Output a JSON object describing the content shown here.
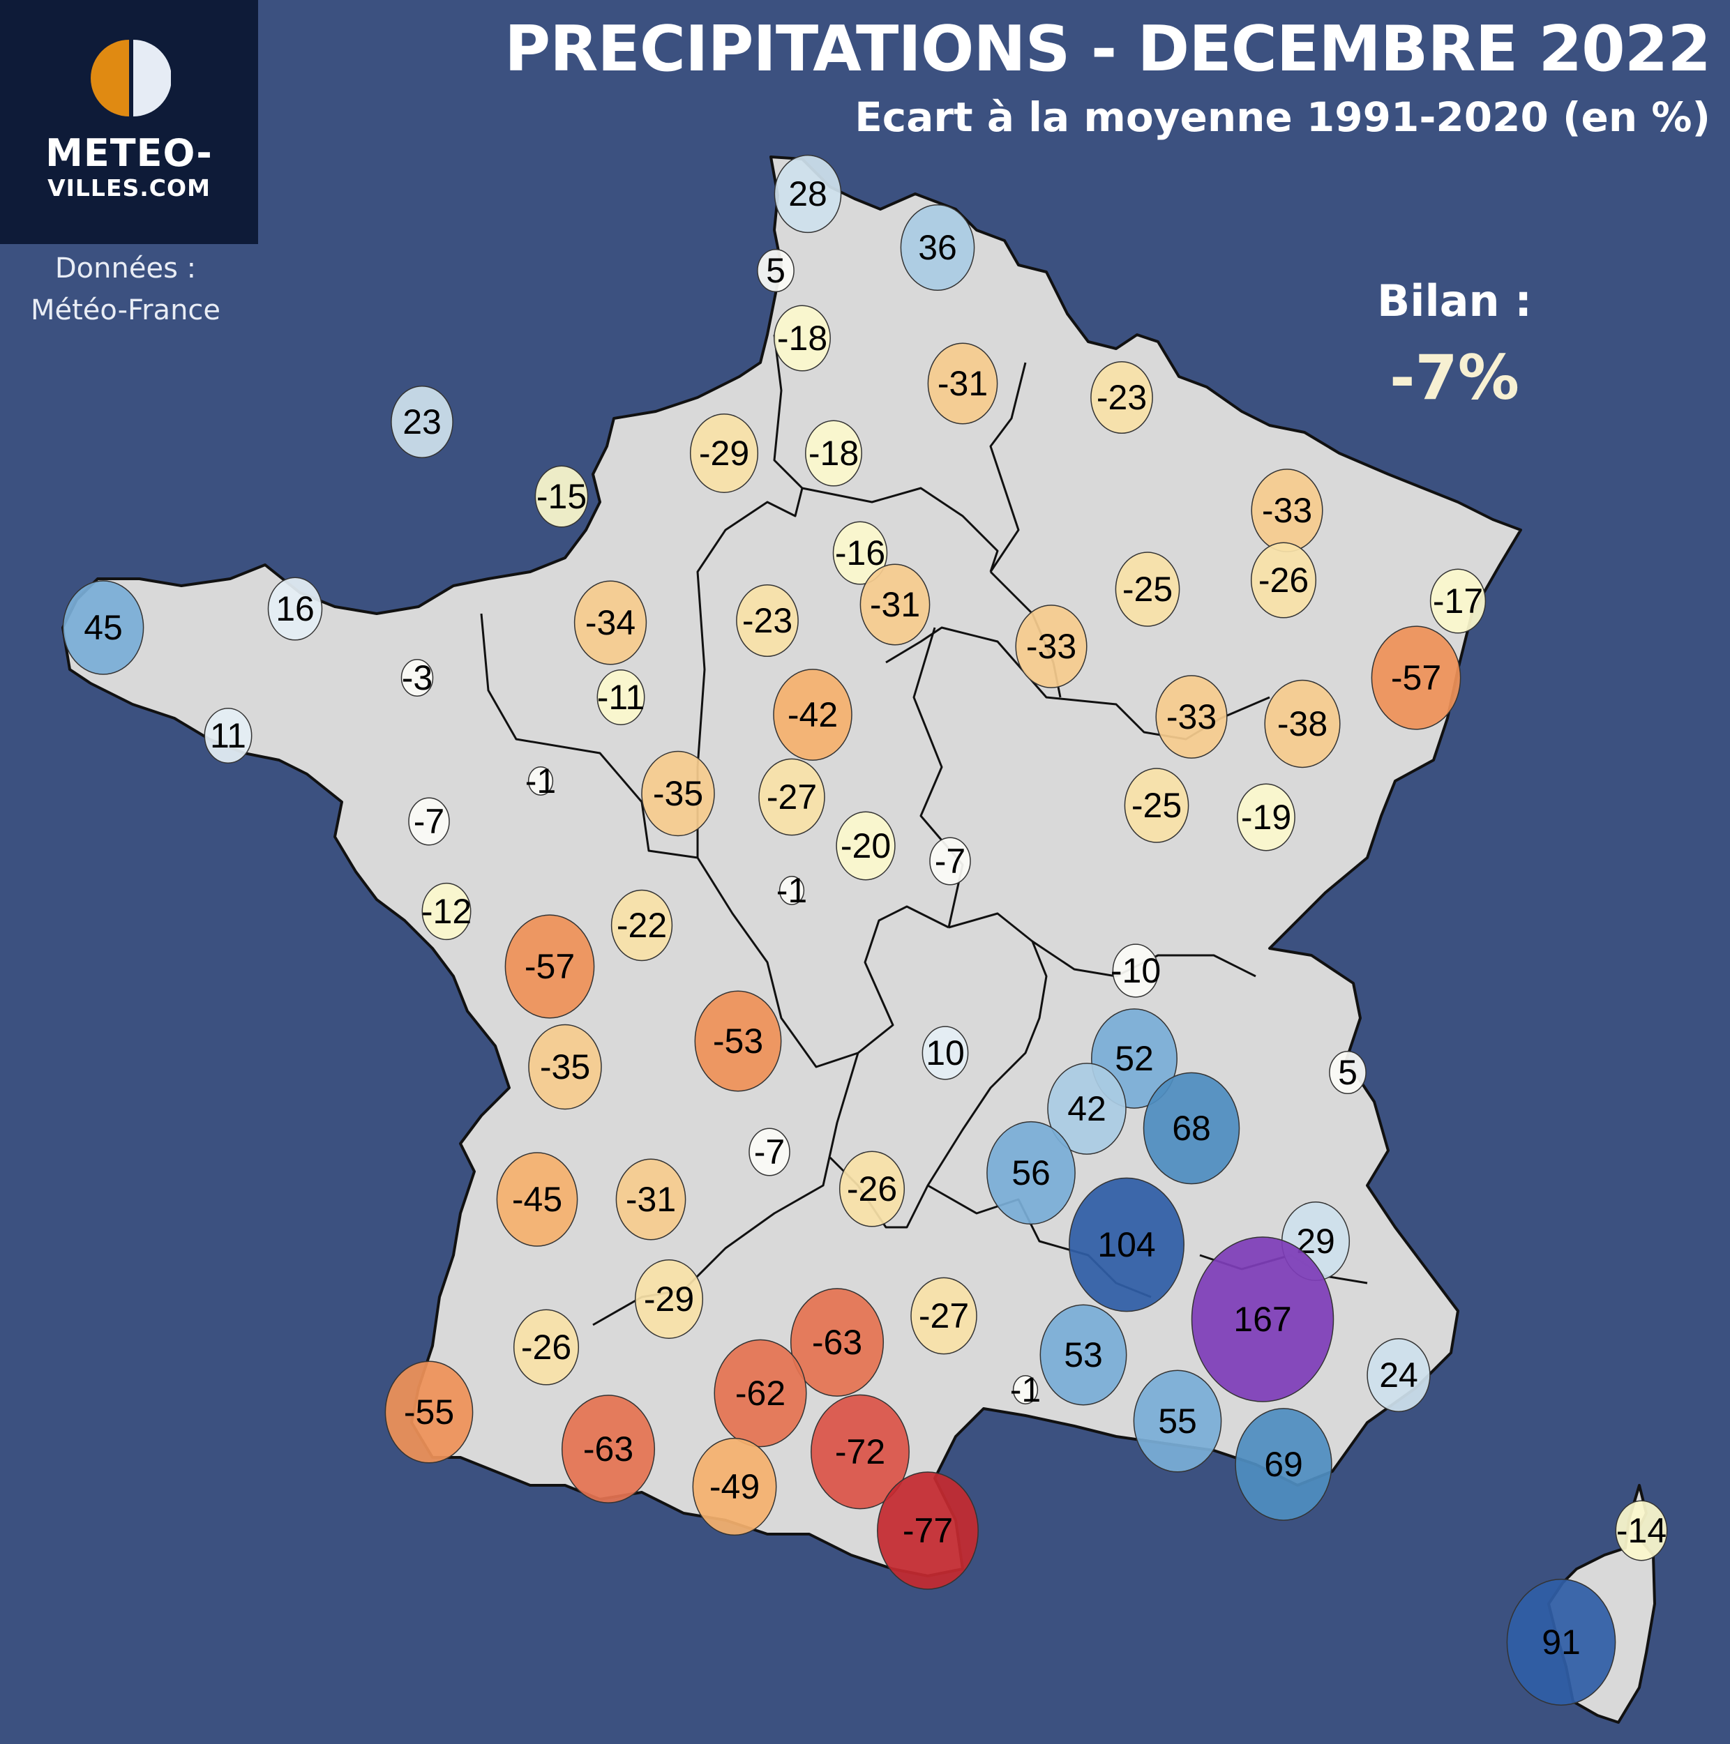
{
  "header": {
    "title": "PRECIPITATIONS - DECEMBRE 2022",
    "subtitle": "Ecart à la moyenne 1991-2020 (en %)"
  },
  "logo": {
    "line1": "METEO-",
    "line2": "VILLES.COM",
    "colors": {
      "left": "#e08a12",
      "right": "#e6ecf5"
    }
  },
  "source": {
    "line1": "Données :",
    "line2": "Météo-France"
  },
  "summary": {
    "label": "Bilan :",
    "value": "-7%"
  },
  "colors": {
    "background": "#3c5180",
    "land": "#d9d9d9",
    "border": "#111111",
    "scale": [
      {
        "min": 150,
        "color": "#7e3db8"
      },
      {
        "min": 80,
        "color": "#2f5ea6"
      },
      {
        "min": 60,
        "color": "#4f8dc0"
      },
      {
        "min": 45,
        "color": "#7aadd6"
      },
      {
        "min": 30,
        "color": "#aacbe3"
      },
      {
        "min": 20,
        "color": "#cde0ec"
      },
      {
        "min": 10,
        "color": "#e4eef4"
      },
      {
        "min": -10,
        "color": "#fbfbf6"
      },
      {
        "min": -20,
        "color": "#fbf7cc"
      },
      {
        "min": -30,
        "color": "#f7e1a8"
      },
      {
        "min": -40,
        "color": "#f5cb8e"
      },
      {
        "min": -50,
        "color": "#f4b06e"
      },
      {
        "min": -60,
        "color": "#ee9158"
      },
      {
        "min": -70,
        "color": "#e47352"
      },
      {
        "min": -75,
        "color": "#da5448"
      },
      {
        "min": -1000,
        "color": "#c42a30"
      }
    ]
  },
  "stations": [
    {
      "value": 28,
      "label": "28"
    },
    {
      "value": 36,
      "label": "36"
    },
    {
      "value": 5,
      "label": "5"
    },
    {
      "value": -18,
      "label": "-18"
    },
    {
      "value": -31,
      "label": "-31"
    },
    {
      "value": -23,
      "label": "-23"
    },
    {
      "value": 23,
      "label": "23"
    },
    {
      "value": -29,
      "label": "-29"
    },
    {
      "value": -18,
      "label": "-18"
    },
    {
      "value": -15,
      "label": "-15"
    },
    {
      "value": -33,
      "label": "-33"
    },
    {
      "value": -16,
      "label": "-16"
    },
    {
      "value": -26,
      "label": "-26"
    },
    {
      "value": -25,
      "label": "-25"
    },
    {
      "value": -17,
      "label": "-17"
    },
    {
      "value": 45,
      "label": "45"
    },
    {
      "value": 16,
      "label": "16"
    },
    {
      "value": -34,
      "label": "-34"
    },
    {
      "value": -23,
      "label": "-23"
    },
    {
      "value": -31,
      "label": "-31"
    },
    {
      "value": -33,
      "label": "-33"
    },
    {
      "value": -57,
      "label": "-57"
    },
    {
      "value": -3,
      "label": "-3"
    },
    {
      "value": -11,
      "label": "-11"
    },
    {
      "value": -42,
      "label": "-42"
    },
    {
      "value": -33,
      "label": "-33"
    },
    {
      "value": -38,
      "label": "-38"
    },
    {
      "value": 11,
      "label": "11"
    },
    {
      "value": -1,
      "label": "-1"
    },
    {
      "value": -35,
      "label": "-35"
    },
    {
      "value": -27,
      "label": "-27"
    },
    {
      "value": -25,
      "label": "-25"
    },
    {
      "value": -19,
      "label": "-19"
    },
    {
      "value": -7,
      "label": "-7"
    },
    {
      "value": -20,
      "label": "-20"
    },
    {
      "value": -7,
      "label": "-7"
    },
    {
      "value": -1,
      "label": "-1"
    },
    {
      "value": -12,
      "label": "-12"
    },
    {
      "value": -22,
      "label": "-22"
    },
    {
      "value": -57,
      "label": "-57"
    },
    {
      "value": -10,
      "label": "-10"
    },
    {
      "value": -35,
      "label": "-35"
    },
    {
      "value": -53,
      "label": "-53"
    },
    {
      "value": 10,
      "label": "10"
    },
    {
      "value": 52,
      "label": "52"
    },
    {
      "value": 5,
      "label": "5"
    },
    {
      "value": 42,
      "label": "42"
    },
    {
      "value": 68,
      "label": "68"
    },
    {
      "value": -7,
      "label": "-7"
    },
    {
      "value": -45,
      "label": "-45"
    },
    {
      "value": -31,
      "label": "-31"
    },
    {
      "value": -26,
      "label": "-26"
    },
    {
      "value": 56,
      "label": "56"
    },
    {
      "value": 104,
      "label": "104"
    },
    {
      "value": 29,
      "label": "29"
    },
    {
      "value": -29,
      "label": "-29"
    },
    {
      "value": -27,
      "label": "-27"
    },
    {
      "value": 167,
      "label": "167"
    },
    {
      "value": -63,
      "label": "-63"
    },
    {
      "value": -26,
      "label": "-26"
    },
    {
      "value": -62,
      "label": "-62"
    },
    {
      "value": 53,
      "label": "53"
    },
    {
      "value": 24,
      "label": "24"
    },
    {
      "value": -55,
      "label": "-55"
    },
    {
      "value": -1,
      "label": "-1"
    },
    {
      "value": 55,
      "label": "55"
    },
    {
      "value": -63,
      "label": "-63"
    },
    {
      "value": -72,
      "label": "-72"
    },
    {
      "value": -49,
      "label": "-49"
    },
    {
      "value": 69,
      "label": "69"
    },
    {
      "value": -77,
      "label": "-77"
    },
    {
      "value": -14,
      "label": "-14"
    },
    {
      "value": 91,
      "label": "91"
    }
  ]
}
